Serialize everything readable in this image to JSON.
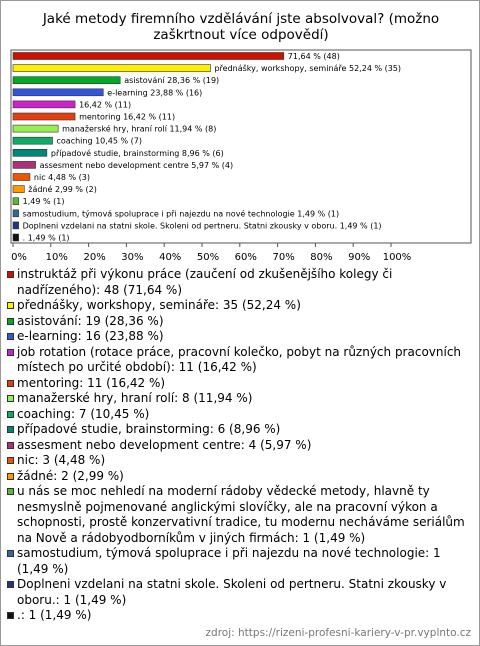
{
  "chart_data": {
    "type": "hbar",
    "title": "Jaké metody firemního vzdělávání jste absolvoval? (možno zaškrtnout více odpovědí)",
    "values": [
      71.64,
      52.24,
      28.36,
      23.88,
      16.42,
      16.42,
      11.94,
      10.45,
      8.96,
      5.97,
      4.48,
      2.99,
      1.49,
      1.49,
      1.49,
      1.49
    ],
    "value_labels": [
      "71,64 % (48)",
      "přednášky, workshopy, semináře 52,24 % (35)",
      "asistování 28,36 % (19)",
      "e-learning 23,88 % (16)",
      "16,42 % (11)",
      "mentoring 16,42 % (11)",
      "manažerské hry, hraní rolí 11,94 % (8)",
      "coaching 10,45 % (7)",
      "případové studie, brainstorming 8,96 % (6)",
      "assesment nebo development centre 5,97 % (4)",
      "nic 4,48 % (3)",
      "žádné 2,99 % (2)",
      "1,49 % (1)",
      "samostudium, týmová spoluprace i při najezdu na nové technologie 1,49 % (1)",
      "Doplneni vzdelani na statni skole. Skoleni od pertneru. Statni zkousky v oboru. 1,49 % (1)",
      ". 1,49 % (1)"
    ],
    "colors": [
      "#cc1100",
      "#ffee00",
      "#00aa22",
      "#3355dd",
      "#cc22cc",
      "#e04010",
      "#99ee55",
      "#11aa66",
      "#008877",
      "#aa3377",
      "#ee5500",
      "#ff9900",
      "#55bb33",
      "#336699",
      "#223388",
      "#111111"
    ],
    "legend": [
      "instruktáž při výkonu práce (zaučení od zkušenějšího kolegy či nadřízeného): 48 (71,64 %)",
      "přednášky, workshopy, semináře: 35 (52,24 %)",
      "asistování: 19 (28,36 %)",
      "e-learning: 16 (23,88 %)",
      "job rotation (rotace práce, pracovní kolečko, pobyt na různých pracovních místech po určité období): 11 (16,42 %)",
      "mentoring: 11 (16,42 %)",
      "manažerské hry, hraní rolí: 8 (11,94 %)",
      "coaching: 7 (10,45 %)",
      "případové studie, brainstorming: 6 (8,96 %)",
      "assesment nebo development centre: 4 (5,97 %)",
      "nic: 3 (4,48 %)",
      "žádné: 2 (2,99 %)",
      "u nás se moc nehledí na moderní rádoby vědecké metody, hlavně ty nesmyslně pojmenované anglickými slovíčky, ale na pracovní výkon a schopnosti, prostě konzervativní tradice, tu modernu necháváme seriálům na Nově a rádobyodborníkům v jiných firmách: 1 (1,49 %)",
      "samostudium, týmová spoluprace i při najezdu na nové technologie: 1 (1,49 %)",
      "Doplneni vzdelani na statni skole. Skoleni od pertneru. Statni zkousky v oboru.: 1 (1,49 %)",
      ".: 1 (1,49 %)"
    ],
    "xlim": [
      0,
      100
    ],
    "xticks": [
      {
        "value": 0,
        "label": "0%"
      },
      {
        "value": 10,
        "label": "10%"
      },
      {
        "value": 20,
        "label": "20%"
      },
      {
        "value": 30,
        "label": "30%"
      },
      {
        "value": 40,
        "label": "40%"
      },
      {
        "value": 50,
        "label": "50%"
      },
      {
        "value": 60,
        "label": "60%"
      },
      {
        "value": 70,
        "label": "70%"
      },
      {
        "value": 80,
        "label": "80%"
      },
      {
        "value": 90,
        "label": "90%"
      },
      {
        "value": 100,
        "label": "100%"
      }
    ],
    "source": "zdroj: https://rizeni-profesni-kariery-v-pr.vyplnto.cz"
  }
}
